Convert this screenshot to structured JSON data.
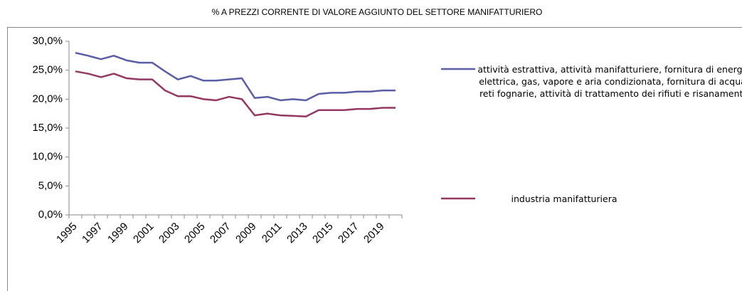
{
  "chart_data": {
    "type": "line",
    "title": "% A PREZZI CORRENTE DI VALORE AGGIUNTO DEL SETTORE MANIFATTURIERO",
    "categories": [
      "1995",
      null,
      "1997",
      null,
      "1999",
      null,
      "2001",
      null,
      "2003",
      null,
      "2005",
      null,
      "2007",
      null,
      "2009",
      null,
      "2011",
      null,
      "2013",
      null,
      "2015",
      null,
      "2017",
      null,
      "2019",
      null
    ],
    "series": [
      {
        "name": "attività estrattiva, attività manifatturiere, fornitura di energia elettrica, gas, vapore e aria condizionata, fornitura di acqua, reti fognarie, attività di trattamento dei rifiuti e risanamento",
        "color": "#5b5ea6",
        "values": [
          28.0,
          27.5,
          26.9,
          27.5,
          26.7,
          26.3,
          26.3,
          24.8,
          23.4,
          24.0,
          23.2,
          23.2,
          23.4,
          23.6,
          20.2,
          20.4,
          19.8,
          20.0,
          19.8,
          20.9,
          21.1,
          21.1,
          21.3,
          21.3,
          21.5,
          21.5
        ]
      },
      {
        "name": "industria manifatturiera",
        "color": "#953861",
        "values": [
          24.8,
          24.4,
          23.8,
          24.4,
          23.6,
          23.4,
          23.4,
          21.5,
          20.5,
          20.5,
          20.0,
          19.8,
          20.4,
          20.0,
          17.2,
          17.5,
          17.2,
          17.1,
          17.0,
          18.1,
          18.1,
          18.1,
          18.3,
          18.3,
          18.5,
          18.5
        ]
      }
    ],
    "ylim": [
      0,
      30
    ],
    "yticks": [
      {
        "value": 0,
        "label": "0,0%"
      },
      {
        "value": 5,
        "label": "5,0%"
      },
      {
        "value": 10,
        "label": "10,0%"
      },
      {
        "value": 15,
        "label": "15,0%"
      },
      {
        "value": 20,
        "label": "20,0%"
      },
      {
        "value": 25,
        "label": "25,0%"
      },
      {
        "value": 30,
        "label": "30,0%"
      }
    ]
  }
}
